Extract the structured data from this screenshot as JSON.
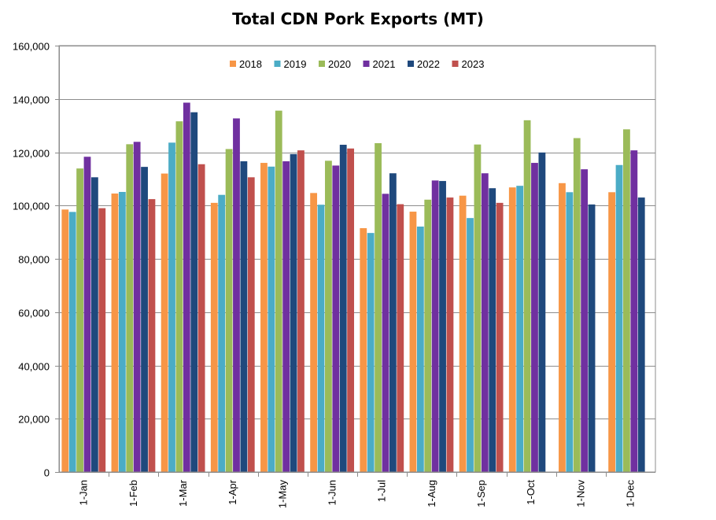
{
  "chart_data": {
    "type": "bar",
    "title": "Total CDN Pork Exports (MT)",
    "xlabel": "",
    "ylabel": "",
    "ylim": [
      0,
      160000
    ],
    "yticks": [
      "0",
      "20,000",
      "40,000",
      "60,000",
      "80,000",
      "100,000",
      "120,000",
      "140,000",
      "160,000"
    ],
    "categories": [
      "1-Jan",
      "1-Feb",
      "1-Mar",
      "1-Apr",
      "1-May",
      "1-Jun",
      "1-Jul",
      "1-Aug",
      "1-Sep",
      "1-Oct",
      "1-Nov",
      "1-Dec"
    ],
    "grid": "horizontal",
    "legend_position": "top",
    "series": [
      {
        "name": "2018",
        "color": "#F79646",
        "values": [
          98500,
          104500,
          112000,
          101000,
          116000,
          104700,
          91500,
          97700,
          103700,
          106800,
          108400,
          105000
        ]
      },
      {
        "name": "2019",
        "color": "#4BACC6",
        "values": [
          97600,
          105100,
          123600,
          104000,
          114600,
          100300,
          89700,
          92100,
          95300,
          107400,
          105000,
          115200
        ]
      },
      {
        "name": "2020",
        "color": "#9BBB59",
        "values": [
          113900,
          123000,
          131600,
          121200,
          135600,
          116800,
          123400,
          102200,
          122900,
          132000,
          125300,
          128600
        ]
      },
      {
        "name": "2021",
        "color": "#7030A0",
        "values": [
          118300,
          123900,
          138600,
          132700,
          116600,
          115000,
          104400,
          109400,
          112100,
          116000,
          113600,
          120700
        ]
      },
      {
        "name": "2022",
        "color": "#1F497D",
        "values": [
          110600,
          114500,
          135000,
          116600,
          119300,
          122800,
          112100,
          109200,
          106500,
          119900,
          100400,
          103000
        ]
      },
      {
        "name": "2023",
        "color": "#C0504D",
        "values": [
          99000,
          102400,
          115500,
          110600,
          120700,
          121400,
          100500,
          103000,
          101000,
          null,
          null,
          null
        ]
      }
    ]
  }
}
